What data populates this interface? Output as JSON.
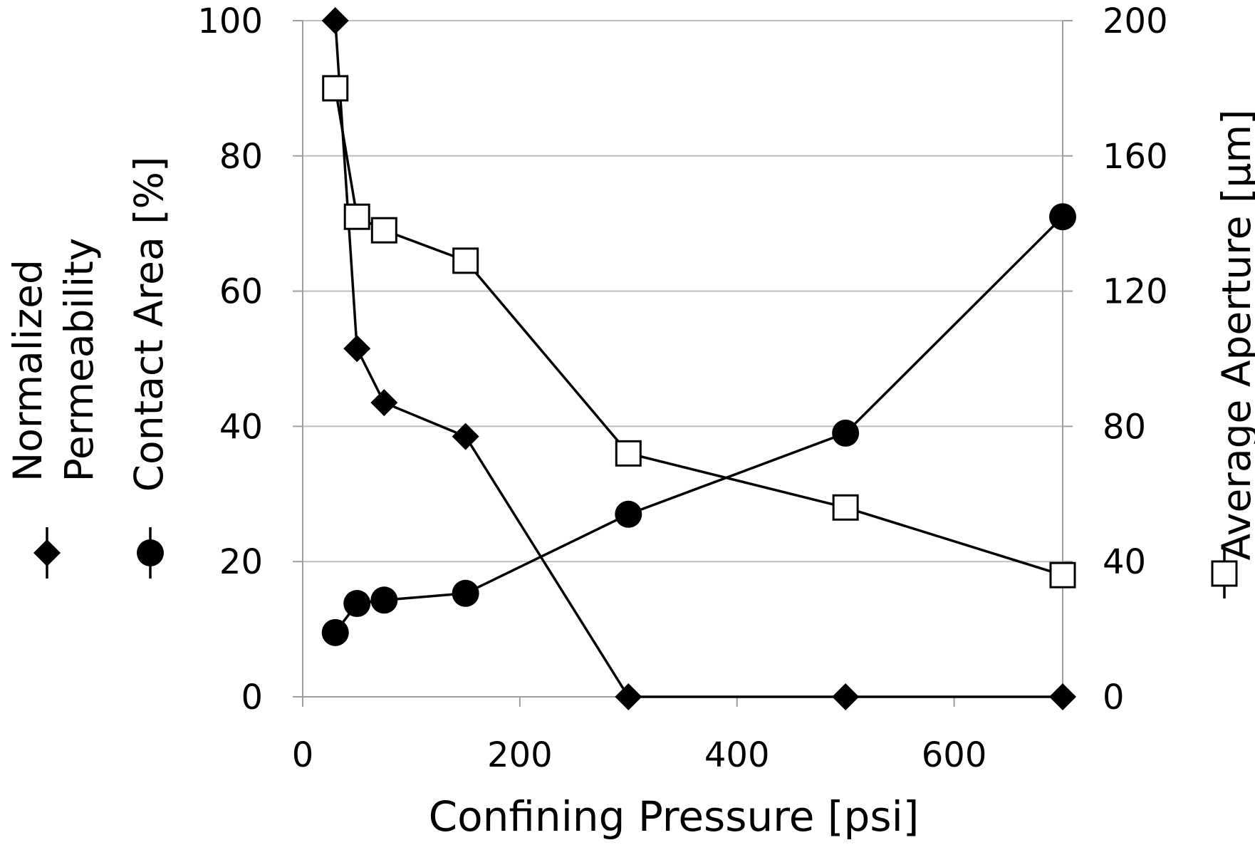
{
  "chart_data": {
    "type": "line",
    "title": "",
    "xlabel": "Confining Pressure [psi]",
    "x_ticks": [
      "0",
      "200",
      "400",
      "600"
    ],
    "xlim": [
      0,
      700
    ],
    "y_left": {
      "label_lines": [
        "Normalized",
        "Permeability"
      ],
      "label_second": "Contact Area [%]",
      "ticks": [
        "0",
        "20",
        "40",
        "60",
        "80",
        "100"
      ],
      "ylim": [
        0,
        100
      ]
    },
    "y_right": {
      "label": "Average Aperture [µm]",
      "ticks": [
        "0",
        "40",
        "80",
        "120",
        "160",
        "200"
      ],
      "ylim": [
        0,
        200
      ]
    },
    "grid": true,
    "series": [
      {
        "name": "Normalized Permeability",
        "marker": "diamond",
        "axis": "left",
        "x": [
          30,
          50,
          75,
          150,
          300,
          500,
          700
        ],
        "y": [
          100,
          51.5,
          43.5,
          38.5,
          0,
          0,
          0
        ]
      },
      {
        "name": "Contact Area [%]",
        "marker": "circle",
        "axis": "left",
        "x": [
          30,
          50,
          75,
          150,
          300,
          500,
          700
        ],
        "y": [
          9.5,
          13.8,
          14.3,
          15.3,
          27,
          39,
          71
        ]
      },
      {
        "name": "Average Aperture [µm]",
        "marker": "square",
        "axis": "right",
        "x": [
          30,
          50,
          75,
          150,
          300,
          500,
          700
        ],
        "y": [
          180,
          142,
          138,
          129,
          72,
          56,
          36
        ]
      }
    ]
  }
}
